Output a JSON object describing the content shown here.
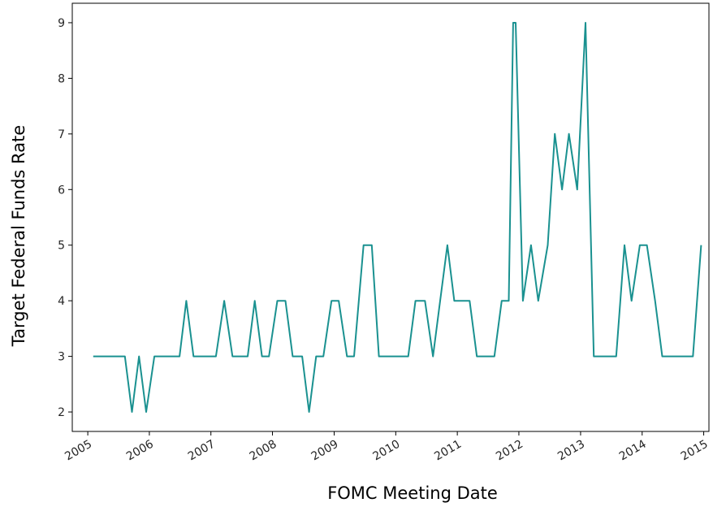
{
  "chart_data": {
    "type": "line",
    "title": "",
    "xlabel": "FOMC Meeting Date",
    "ylabel": "Target Federal Funds Rate",
    "xlim": [
      "2004-10-01",
      "2015-02-01"
    ],
    "ylim": [
      1.65,
      9.35
    ],
    "x_ticks": [
      "2005",
      "2006",
      "2007",
      "2008",
      "2009",
      "2010",
      "2011",
      "2012",
      "2013",
      "2014",
      "2015"
    ],
    "y_ticks": [
      "2",
      "3",
      "4",
      "5",
      "6",
      "7",
      "8",
      "9"
    ],
    "grid": false,
    "legend": "none",
    "series": [
      {
        "color": "#1a9190",
        "points": [
          [
            "2005-02-02",
            3
          ],
          [
            "2005-03-22",
            3
          ],
          [
            "2005-05-03",
            3
          ],
          [
            "2005-06-30",
            3
          ],
          [
            "2005-08-09",
            3
          ],
          [
            "2005-09-20",
            2
          ],
          [
            "2005-11-01",
            3
          ],
          [
            "2005-12-13",
            2
          ],
          [
            "2006-01-31",
            3
          ],
          [
            "2006-03-28",
            3
          ],
          [
            "2006-05-10",
            3
          ],
          [
            "2006-06-29",
            3
          ],
          [
            "2006-08-08",
            4
          ],
          [
            "2006-09-20",
            3
          ],
          [
            "2006-10-25",
            3
          ],
          [
            "2006-12-12",
            3
          ],
          [
            "2007-01-31",
            3
          ],
          [
            "2007-03-21",
            4
          ],
          [
            "2007-05-09",
            3
          ],
          [
            "2007-06-28",
            3
          ],
          [
            "2007-08-07",
            3
          ],
          [
            "2007-09-18",
            4
          ],
          [
            "2007-10-31",
            3
          ],
          [
            "2007-12-11",
            3
          ],
          [
            "2008-01-30",
            4
          ],
          [
            "2008-03-18",
            4
          ],
          [
            "2008-04-30",
            3
          ],
          [
            "2008-06-25",
            3
          ],
          [
            "2008-08-05",
            2
          ],
          [
            "2008-09-16",
            3
          ],
          [
            "2008-10-29",
            3
          ],
          [
            "2008-12-16",
            4
          ],
          [
            "2009-01-28",
            4
          ],
          [
            "2009-03-18",
            3
          ],
          [
            "2009-04-29",
            3
          ],
          [
            "2009-06-24",
            5
          ],
          [
            "2009-08-12",
            5
          ],
          [
            "2009-09-23",
            3
          ],
          [
            "2009-11-04",
            3
          ],
          [
            "2009-12-16",
            3
          ],
          [
            "2010-01-27",
            3
          ],
          [
            "2010-03-16",
            3
          ],
          [
            "2010-04-28",
            4
          ],
          [
            "2010-06-23",
            4
          ],
          [
            "2010-08-10",
            3
          ],
          [
            "2010-09-21",
            4
          ],
          [
            "2010-11-03",
            5
          ],
          [
            "2010-12-14",
            4
          ],
          [
            "2011-01-26",
            4
          ],
          [
            "2011-03-15",
            4
          ],
          [
            "2011-04-27",
            3
          ],
          [
            "2011-06-22",
            3
          ],
          [
            "2011-08-09",
            3
          ],
          [
            "2011-09-21",
            4
          ],
          [
            "2011-11-02",
            4
          ],
          [
            "2011-11-28",
            9
          ],
          [
            "2011-12-13",
            9
          ],
          [
            "2012-01-25",
            4
          ],
          [
            "2012-03-13",
            5
          ],
          [
            "2012-04-25",
            4
          ],
          [
            "2012-06-20",
            5
          ],
          [
            "2012-08-01",
            7
          ],
          [
            "2012-09-13",
            6
          ],
          [
            "2012-10-24",
            7
          ],
          [
            "2012-12-12",
            6
          ],
          [
            "2013-01-30",
            9
          ],
          [
            "2013-03-20",
            3
          ],
          [
            "2013-05-01",
            3
          ],
          [
            "2013-06-19",
            3
          ],
          [
            "2013-07-31",
            3
          ],
          [
            "2013-09-18",
            5
          ],
          [
            "2013-10-30",
            4
          ],
          [
            "2013-12-18",
            5
          ],
          [
            "2014-01-29",
            5
          ],
          [
            "2014-03-19",
            4
          ],
          [
            "2014-04-30",
            3
          ],
          [
            "2014-06-18",
            3
          ],
          [
            "2014-07-30",
            3
          ],
          [
            "2014-09-17",
            3
          ],
          [
            "2014-10-29",
            3
          ],
          [
            "2014-12-17",
            5
          ]
        ]
      }
    ]
  }
}
